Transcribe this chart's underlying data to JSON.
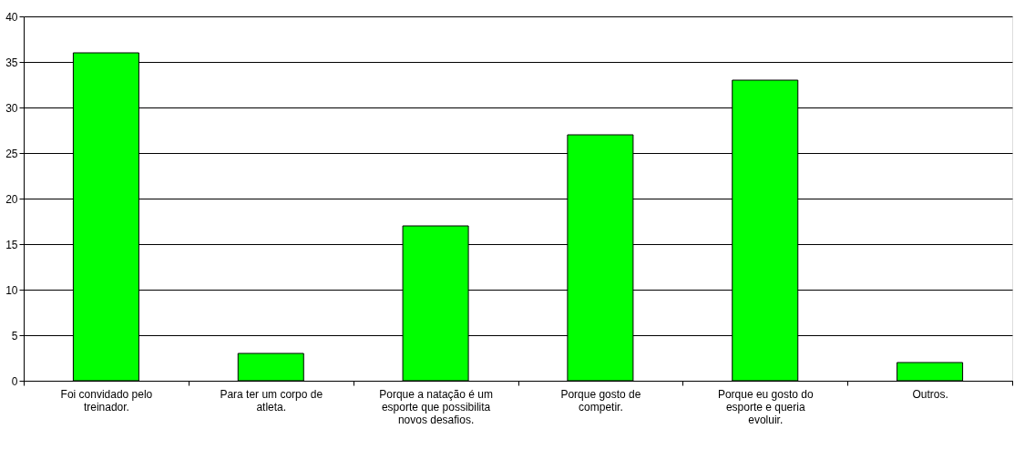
{
  "chart_data": {
    "type": "bar",
    "categories": [
      "Foi convidado pelo treinador.",
      "Para ter um corpo de atleta.",
      "Porque a natação é um esporte que possibilita novos desafios.",
      "Porque gosto de competir.",
      "Porque eu gosto do esporte e queria evoluir.",
      "Outros."
    ],
    "values": [
      36,
      3,
      17,
      27,
      33,
      2
    ],
    "color": "#00ff00",
    "ylim": [
      0,
      40
    ],
    "yticks": [
      0,
      5,
      10,
      15,
      20,
      25,
      30,
      35,
      40
    ],
    "grid": "y"
  }
}
